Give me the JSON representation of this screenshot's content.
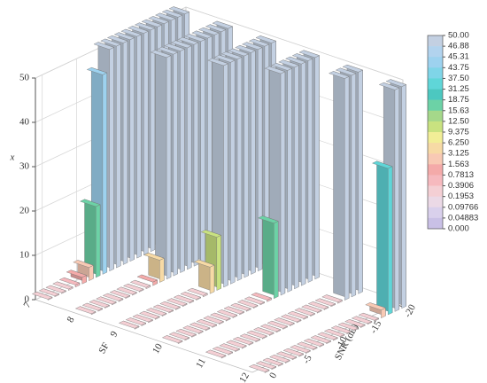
{
  "chart_data": {
    "type": "bar3d",
    "xlabel": "SF",
    "ylabel": "SNR (dB)",
    "zlabel": "x",
    "sf": [
      7,
      8,
      9,
      10,
      11,
      12
    ],
    "snr": [
      -20,
      -19,
      -18,
      -17,
      -16,
      -15,
      -14,
      -13,
      -12,
      -11,
      -10,
      -9,
      -8,
      -7,
      -6,
      -5,
      -4,
      -3,
      -2,
      -1,
      0
    ],
    "snrlim": [
      -21,
      1
    ],
    "snrticks": [
      -20,
      -15,
      -10,
      -5,
      0
    ],
    "zlim": [
      0,
      50
    ],
    "zticks": [
      0,
      10,
      20,
      30,
      40,
      50
    ],
    "grid": true,
    "values": [
      [
        50,
        50,
        50,
        50,
        50,
        50,
        50,
        50,
        50,
        50,
        50,
        50,
        45,
        16,
        3,
        1.5,
        0.5,
        0.3,
        0.2,
        0.2,
        0.2
      ],
      [
        50,
        50,
        50,
        50,
        50,
        50,
        50,
        50,
        50,
        50,
        5,
        0.8,
        0.3,
        0.2,
        0.2,
        0.2,
        0.2,
        0.2,
        0.2,
        0.2,
        0.2
      ],
      [
        50,
        50,
        50,
        50,
        50,
        50,
        50,
        50,
        12,
        6,
        0.3,
        0.2,
        0.2,
        0.2,
        0.2,
        0.2,
        0.2,
        0.2,
        0.2,
        0.2,
        0.2
      ],
      [
        50,
        50,
        50,
        50,
        50,
        50,
        17,
        0.4,
        0.2,
        0.2,
        0.2,
        0.2,
        0.2,
        0.2,
        0.2,
        0.2,
        0.2,
        0.2,
        0.2,
        0.2,
        0.2
      ],
      [
        50,
        50,
        50,
        0.3,
        0.2,
        0.2,
        0.2,
        0.2,
        0.2,
        0.2,
        0.2,
        0.2,
        0.2,
        0.2,
        0.2,
        0.2,
        0.2,
        0.2,
        0.2,
        0.2,
        0.2
      ],
      [
        50,
        50,
        33,
        1.8,
        0.2,
        0.2,
        0.2,
        0.2,
        0.2,
        0.2,
        0.2,
        0.2,
        0.2,
        0.2,
        0.2,
        0.2,
        0.2,
        0.2,
        0.2,
        0.2,
        0.2
      ]
    ],
    "colorbar": {
      "levels": [
        {
          "value": 50,
          "label": "50.00"
        },
        46.88,
        45.31,
        43.75,
        {
          "value": 37.5,
          "label": "37.50"
        },
        31.25,
        18.75,
        15.63,
        {
          "value": 12.5,
          "label": "12.50"
        },
        9.375,
        {
          "value": 6.25,
          "label": "6.250"
        },
        3.125,
        1.563,
        0.7813,
        0.3906,
        0.1953,
        0.09766,
        0.04883,
        {
          "value": 0,
          "label": "0.000"
        }
      ],
      "colors": [
        "#c3d0e2",
        "#b2d3ee",
        "#9dd2ef",
        "#7fd5e8",
        "#5fd6d8",
        "#4cc8c0",
        "#6cd2a6",
        "#a5d88a",
        "#c9e280",
        "#f2ee97",
        "#f7daa5",
        "#f8c9b4",
        "#f4aaa9",
        "#f6b9be",
        "#f4cfd4",
        "#ebd9e6",
        "#d9d0ec",
        "#c9c0e6"
      ]
    }
  }
}
